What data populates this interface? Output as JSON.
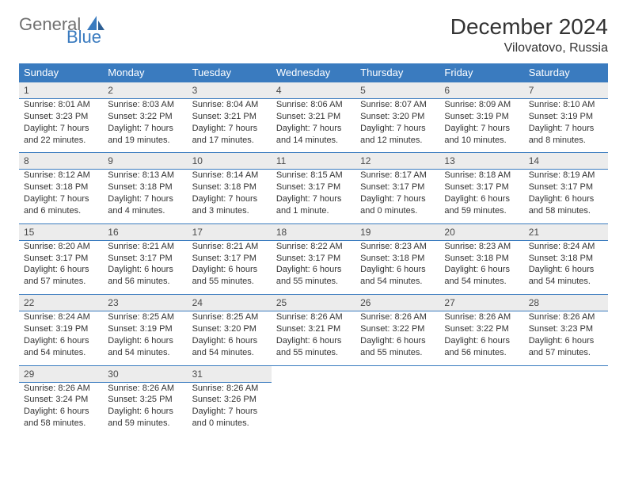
{
  "brand": {
    "part1": "General",
    "part2": "Blue",
    "color1": "#707070",
    "color2": "#3a7bbf"
  },
  "title": "December 2024",
  "location": "Vilovatovo, Russia",
  "colors": {
    "header_bg": "#3a7bbf",
    "header_text": "#ffffff",
    "daynum_bg": "#ececec",
    "border": "#3a7bbf",
    "body_text": "#333333"
  },
  "typography": {
    "title_size": 28,
    "location_size": 16,
    "dow_size": 13,
    "cell_size": 11
  },
  "days_of_week": [
    "Sunday",
    "Monday",
    "Tuesday",
    "Wednesday",
    "Thursday",
    "Friday",
    "Saturday"
  ],
  "weeks": [
    [
      {
        "n": "1",
        "sr": "Sunrise: 8:01 AM",
        "ss": "Sunset: 3:23 PM",
        "d1": "Daylight: 7 hours",
        "d2": "and 22 minutes."
      },
      {
        "n": "2",
        "sr": "Sunrise: 8:03 AM",
        "ss": "Sunset: 3:22 PM",
        "d1": "Daylight: 7 hours",
        "d2": "and 19 minutes."
      },
      {
        "n": "3",
        "sr": "Sunrise: 8:04 AM",
        "ss": "Sunset: 3:21 PM",
        "d1": "Daylight: 7 hours",
        "d2": "and 17 minutes."
      },
      {
        "n": "4",
        "sr": "Sunrise: 8:06 AM",
        "ss": "Sunset: 3:21 PM",
        "d1": "Daylight: 7 hours",
        "d2": "and 14 minutes."
      },
      {
        "n": "5",
        "sr": "Sunrise: 8:07 AM",
        "ss": "Sunset: 3:20 PM",
        "d1": "Daylight: 7 hours",
        "d2": "and 12 minutes."
      },
      {
        "n": "6",
        "sr": "Sunrise: 8:09 AM",
        "ss": "Sunset: 3:19 PM",
        "d1": "Daylight: 7 hours",
        "d2": "and 10 minutes."
      },
      {
        "n": "7",
        "sr": "Sunrise: 8:10 AM",
        "ss": "Sunset: 3:19 PM",
        "d1": "Daylight: 7 hours",
        "d2": "and 8 minutes."
      }
    ],
    [
      {
        "n": "8",
        "sr": "Sunrise: 8:12 AM",
        "ss": "Sunset: 3:18 PM",
        "d1": "Daylight: 7 hours",
        "d2": "and 6 minutes."
      },
      {
        "n": "9",
        "sr": "Sunrise: 8:13 AM",
        "ss": "Sunset: 3:18 PM",
        "d1": "Daylight: 7 hours",
        "d2": "and 4 minutes."
      },
      {
        "n": "10",
        "sr": "Sunrise: 8:14 AM",
        "ss": "Sunset: 3:18 PM",
        "d1": "Daylight: 7 hours",
        "d2": "and 3 minutes."
      },
      {
        "n": "11",
        "sr": "Sunrise: 8:15 AM",
        "ss": "Sunset: 3:17 PM",
        "d1": "Daylight: 7 hours",
        "d2": "and 1 minute."
      },
      {
        "n": "12",
        "sr": "Sunrise: 8:17 AM",
        "ss": "Sunset: 3:17 PM",
        "d1": "Daylight: 7 hours",
        "d2": "and 0 minutes."
      },
      {
        "n": "13",
        "sr": "Sunrise: 8:18 AM",
        "ss": "Sunset: 3:17 PM",
        "d1": "Daylight: 6 hours",
        "d2": "and 59 minutes."
      },
      {
        "n": "14",
        "sr": "Sunrise: 8:19 AM",
        "ss": "Sunset: 3:17 PM",
        "d1": "Daylight: 6 hours",
        "d2": "and 58 minutes."
      }
    ],
    [
      {
        "n": "15",
        "sr": "Sunrise: 8:20 AM",
        "ss": "Sunset: 3:17 PM",
        "d1": "Daylight: 6 hours",
        "d2": "and 57 minutes."
      },
      {
        "n": "16",
        "sr": "Sunrise: 8:21 AM",
        "ss": "Sunset: 3:17 PM",
        "d1": "Daylight: 6 hours",
        "d2": "and 56 minutes."
      },
      {
        "n": "17",
        "sr": "Sunrise: 8:21 AM",
        "ss": "Sunset: 3:17 PM",
        "d1": "Daylight: 6 hours",
        "d2": "and 55 minutes."
      },
      {
        "n": "18",
        "sr": "Sunrise: 8:22 AM",
        "ss": "Sunset: 3:17 PM",
        "d1": "Daylight: 6 hours",
        "d2": "and 55 minutes."
      },
      {
        "n": "19",
        "sr": "Sunrise: 8:23 AM",
        "ss": "Sunset: 3:18 PM",
        "d1": "Daylight: 6 hours",
        "d2": "and 54 minutes."
      },
      {
        "n": "20",
        "sr": "Sunrise: 8:23 AM",
        "ss": "Sunset: 3:18 PM",
        "d1": "Daylight: 6 hours",
        "d2": "and 54 minutes."
      },
      {
        "n": "21",
        "sr": "Sunrise: 8:24 AM",
        "ss": "Sunset: 3:18 PM",
        "d1": "Daylight: 6 hours",
        "d2": "and 54 minutes."
      }
    ],
    [
      {
        "n": "22",
        "sr": "Sunrise: 8:24 AM",
        "ss": "Sunset: 3:19 PM",
        "d1": "Daylight: 6 hours",
        "d2": "and 54 minutes."
      },
      {
        "n": "23",
        "sr": "Sunrise: 8:25 AM",
        "ss": "Sunset: 3:19 PM",
        "d1": "Daylight: 6 hours",
        "d2": "and 54 minutes."
      },
      {
        "n": "24",
        "sr": "Sunrise: 8:25 AM",
        "ss": "Sunset: 3:20 PM",
        "d1": "Daylight: 6 hours",
        "d2": "and 54 minutes."
      },
      {
        "n": "25",
        "sr": "Sunrise: 8:26 AM",
        "ss": "Sunset: 3:21 PM",
        "d1": "Daylight: 6 hours",
        "d2": "and 55 minutes."
      },
      {
        "n": "26",
        "sr": "Sunrise: 8:26 AM",
        "ss": "Sunset: 3:22 PM",
        "d1": "Daylight: 6 hours",
        "d2": "and 55 minutes."
      },
      {
        "n": "27",
        "sr": "Sunrise: 8:26 AM",
        "ss": "Sunset: 3:22 PM",
        "d1": "Daylight: 6 hours",
        "d2": "and 56 minutes."
      },
      {
        "n": "28",
        "sr": "Sunrise: 8:26 AM",
        "ss": "Sunset: 3:23 PM",
        "d1": "Daylight: 6 hours",
        "d2": "and 57 minutes."
      }
    ],
    [
      {
        "n": "29",
        "sr": "Sunrise: 8:26 AM",
        "ss": "Sunset: 3:24 PM",
        "d1": "Daylight: 6 hours",
        "d2": "and 58 minutes."
      },
      {
        "n": "30",
        "sr": "Sunrise: 8:26 AM",
        "ss": "Sunset: 3:25 PM",
        "d1": "Daylight: 6 hours",
        "d2": "and 59 minutes."
      },
      {
        "n": "31",
        "sr": "Sunrise: 8:26 AM",
        "ss": "Sunset: 3:26 PM",
        "d1": "Daylight: 7 hours",
        "d2": "and 0 minutes."
      },
      null,
      null,
      null,
      null
    ]
  ]
}
